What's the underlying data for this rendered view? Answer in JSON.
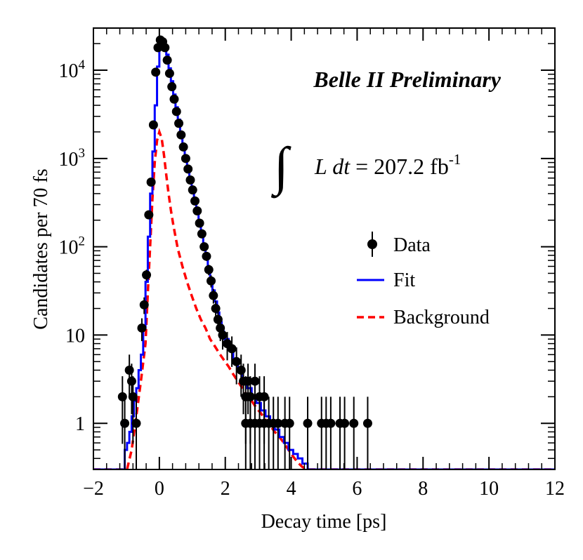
{
  "chart_data": {
    "type": "scatter",
    "title": "",
    "xlabel": "Decay time [ps]",
    "ylabel": "Candidates per 70 fs",
    "xlim": [
      -2,
      12
    ],
    "ylim": [
      0.3,
      30000
    ],
    "yscale": "log",
    "bin_width_ps": 0.07,
    "x_ticks": [
      -2,
      0,
      2,
      4,
      6,
      8,
      10,
      12
    ],
    "x_tick_labels": [
      "−2",
      "0",
      "2",
      "4",
      "6",
      "8",
      "10",
      "12"
    ],
    "y_ticks": [
      1,
      10,
      100,
      1000,
      10000
    ],
    "y_tick_labels": [
      {
        "base": "1",
        "exp": ""
      },
      {
        "base": "10",
        "exp": ""
      },
      {
        "base": "10",
        "exp": "2"
      },
      {
        "base": "10",
        "exp": "3"
      },
      {
        "base": "10",
        "exp": "4"
      }
    ],
    "annotation_title": "Belle II Preliminary",
    "annotation_lumi": {
      "integral": "∫",
      "lhs": "L dt",
      "equals": " = 207.2 fb",
      "sup": "-1"
    },
    "legend": [
      {
        "label": "Data",
        "style": "marker",
        "color": "#000000"
      },
      {
        "label": "Fit",
        "style": "solid",
        "color": "#0000ff"
      },
      {
        "label": "Background",
        "style": "dashed",
        "color": "#ff0000"
      }
    ],
    "series": [
      {
        "name": "Data",
        "type": "points",
        "color": "#000000",
        "points": [
          [
            -1.12,
            2
          ],
          [
            -1.05,
            1
          ],
          [
            -0.91,
            4
          ],
          [
            -0.84,
            3
          ],
          [
            -0.8,
            2
          ],
          [
            -0.7,
            1
          ],
          [
            -0.53,
            12
          ],
          [
            -0.46,
            22
          ],
          [
            -0.39,
            48
          ],
          [
            -0.32,
            230
          ],
          [
            -0.25,
            540
          ],
          [
            -0.18,
            2400
          ],
          [
            -0.11,
            9500
          ],
          [
            -0.04,
            18000
          ],
          [
            0.03,
            22000
          ],
          [
            0.1,
            21000
          ],
          [
            0.17,
            18000
          ],
          [
            0.24,
            13000
          ],
          [
            0.31,
            9200
          ],
          [
            0.38,
            6500
          ],
          [
            0.45,
            4700
          ],
          [
            0.52,
            3400
          ],
          [
            0.59,
            2500
          ],
          [
            0.66,
            1850
          ],
          [
            0.73,
            1350
          ],
          [
            0.8,
            1000
          ],
          [
            0.87,
            760
          ],
          [
            0.94,
            570
          ],
          [
            1.01,
            440
          ],
          [
            1.08,
            330
          ],
          [
            1.15,
            255
          ],
          [
            1.22,
            185
          ],
          [
            1.29,
            140
          ],
          [
            1.36,
            100
          ],
          [
            1.43,
            78
          ],
          [
            1.5,
            55
          ],
          [
            1.57,
            41
          ],
          [
            1.64,
            28
          ],
          [
            1.71,
            20
          ],
          [
            1.78,
            15
          ],
          [
            1.85,
            12
          ],
          [
            1.92,
            10
          ],
          [
            2.06,
            8
          ],
          [
            2.2,
            7
          ],
          [
            2.34,
            5
          ],
          [
            2.48,
            4
          ],
          [
            2.55,
            3
          ],
          [
            2.62,
            2
          ],
          [
            2.69,
            3
          ],
          [
            2.76,
            2
          ],
          [
            2.9,
            3
          ],
          [
            3.04,
            2
          ],
          [
            3.18,
            2
          ],
          [
            2.62,
            1
          ],
          [
            2.76,
            1
          ],
          [
            2.9,
            1
          ],
          [
            3.04,
            1
          ],
          [
            3.18,
            1
          ],
          [
            3.32,
            1
          ],
          [
            3.46,
            1
          ],
          [
            3.6,
            1
          ],
          [
            3.81,
            1
          ],
          [
            3.95,
            1
          ],
          [
            4.5,
            1
          ],
          [
            4.92,
            1
          ],
          [
            5.06,
            1
          ],
          [
            5.2,
            1
          ],
          [
            5.48,
            1
          ],
          [
            5.62,
            1
          ],
          [
            5.9,
            1
          ],
          [
            6.32,
            1
          ]
        ]
      },
      {
        "name": "Fit",
        "type": "step",
        "color": "#0000ff",
        "points": [
          [
            -2.0,
            0.3
          ],
          [
            -1.12,
            0.3
          ],
          [
            -1.05,
            0.5
          ],
          [
            -0.98,
            0.6
          ],
          [
            -0.91,
            0.8
          ],
          [
            -0.84,
            1.2
          ],
          [
            -0.77,
            1.8
          ],
          [
            -0.7,
            2.5
          ],
          [
            -0.63,
            4
          ],
          [
            -0.56,
            6
          ],
          [
            -0.49,
            12
          ],
          [
            -0.42,
            40
          ],
          [
            -0.35,
            130
          ],
          [
            -0.28,
            400
          ],
          [
            -0.21,
            1200
          ],
          [
            -0.14,
            4000
          ],
          [
            -0.07,
            11000
          ],
          [
            0.0,
            19000
          ],
          [
            0.07,
            20000
          ],
          [
            0.14,
            19000
          ],
          [
            0.21,
            15000
          ],
          [
            0.28,
            10500
          ],
          [
            0.35,
            7500
          ],
          [
            0.42,
            5300
          ],
          [
            0.49,
            3800
          ],
          [
            0.56,
            2750
          ],
          [
            0.63,
            2000
          ],
          [
            0.7,
            1450
          ],
          [
            0.77,
            1070
          ],
          [
            0.84,
            800
          ],
          [
            0.91,
            600
          ],
          [
            0.98,
            450
          ],
          [
            1.05,
            340
          ],
          [
            1.12,
            255
          ],
          [
            1.19,
            190
          ],
          [
            1.26,
            145
          ],
          [
            1.33,
            108
          ],
          [
            1.4,
            80
          ],
          [
            1.47,
            58
          ],
          [
            1.54,
            44
          ],
          [
            1.61,
            32
          ],
          [
            1.68,
            24
          ],
          [
            1.75,
            18
          ],
          [
            1.82,
            14
          ],
          [
            1.89,
            11
          ],
          [
            1.96,
            9
          ],
          [
            2.1,
            7
          ],
          [
            2.24,
            5
          ],
          [
            2.38,
            4
          ],
          [
            2.52,
            3
          ],
          [
            2.66,
            2.5
          ],
          [
            2.8,
            2
          ],
          [
            2.94,
            1.7
          ],
          [
            3.08,
            1.4
          ],
          [
            3.22,
            1.2
          ],
          [
            3.36,
            1.0
          ],
          [
            3.5,
            0.85
          ],
          [
            3.64,
            0.7
          ],
          [
            3.78,
            0.6
          ],
          [
            3.92,
            0.5
          ],
          [
            4.06,
            0.45
          ],
          [
            4.2,
            0.4
          ],
          [
            4.34,
            0.35
          ],
          [
            4.5,
            0.3
          ],
          [
            12.0,
            0.3
          ]
        ]
      },
      {
        "name": "Background",
        "type": "line-dashed",
        "color": "#ff0000",
        "points": [
          [
            -2.0,
            0.3
          ],
          [
            -0.98,
            0.3
          ],
          [
            -0.84,
            0.5
          ],
          [
            -0.7,
            1.2
          ],
          [
            -0.56,
            3
          ],
          [
            -0.42,
            8
          ],
          [
            -0.35,
            30
          ],
          [
            -0.28,
            100
          ],
          [
            -0.21,
            350
          ],
          [
            -0.14,
            900
          ],
          [
            -0.07,
            1600
          ],
          [
            0.0,
            2000
          ],
          [
            0.07,
            1700
          ],
          [
            0.14,
            1100
          ],
          [
            0.21,
            650
          ],
          [
            0.28,
            400
          ],
          [
            0.35,
            260
          ],
          [
            0.42,
            180
          ],
          [
            0.49,
            130
          ],
          [
            0.56,
            95
          ],
          [
            0.7,
            60
          ],
          [
            0.84,
            40
          ],
          [
            0.98,
            28
          ],
          [
            1.12,
            20
          ],
          [
            1.26,
            15
          ],
          [
            1.4,
            12
          ],
          [
            1.54,
            9
          ],
          [
            1.68,
            7.5
          ],
          [
            1.82,
            6.2
          ],
          [
            1.96,
            5.2
          ],
          [
            2.1,
            4.4
          ],
          [
            2.24,
            3.6
          ],
          [
            2.38,
            3.0
          ],
          [
            2.52,
            2.5
          ],
          [
            2.66,
            2.1
          ],
          [
            2.8,
            1.8
          ],
          [
            2.94,
            1.5
          ],
          [
            3.08,
            1.3
          ],
          [
            3.22,
            1.1
          ],
          [
            3.36,
            0.95
          ],
          [
            3.5,
            0.8
          ],
          [
            3.64,
            0.7
          ],
          [
            3.78,
            0.6
          ],
          [
            3.92,
            0.5
          ],
          [
            4.06,
            0.42
          ],
          [
            4.2,
            0.36
          ],
          [
            4.34,
            0.32
          ],
          [
            4.5,
            0.3
          ],
          [
            12.0,
            0.3
          ]
        ]
      }
    ]
  }
}
